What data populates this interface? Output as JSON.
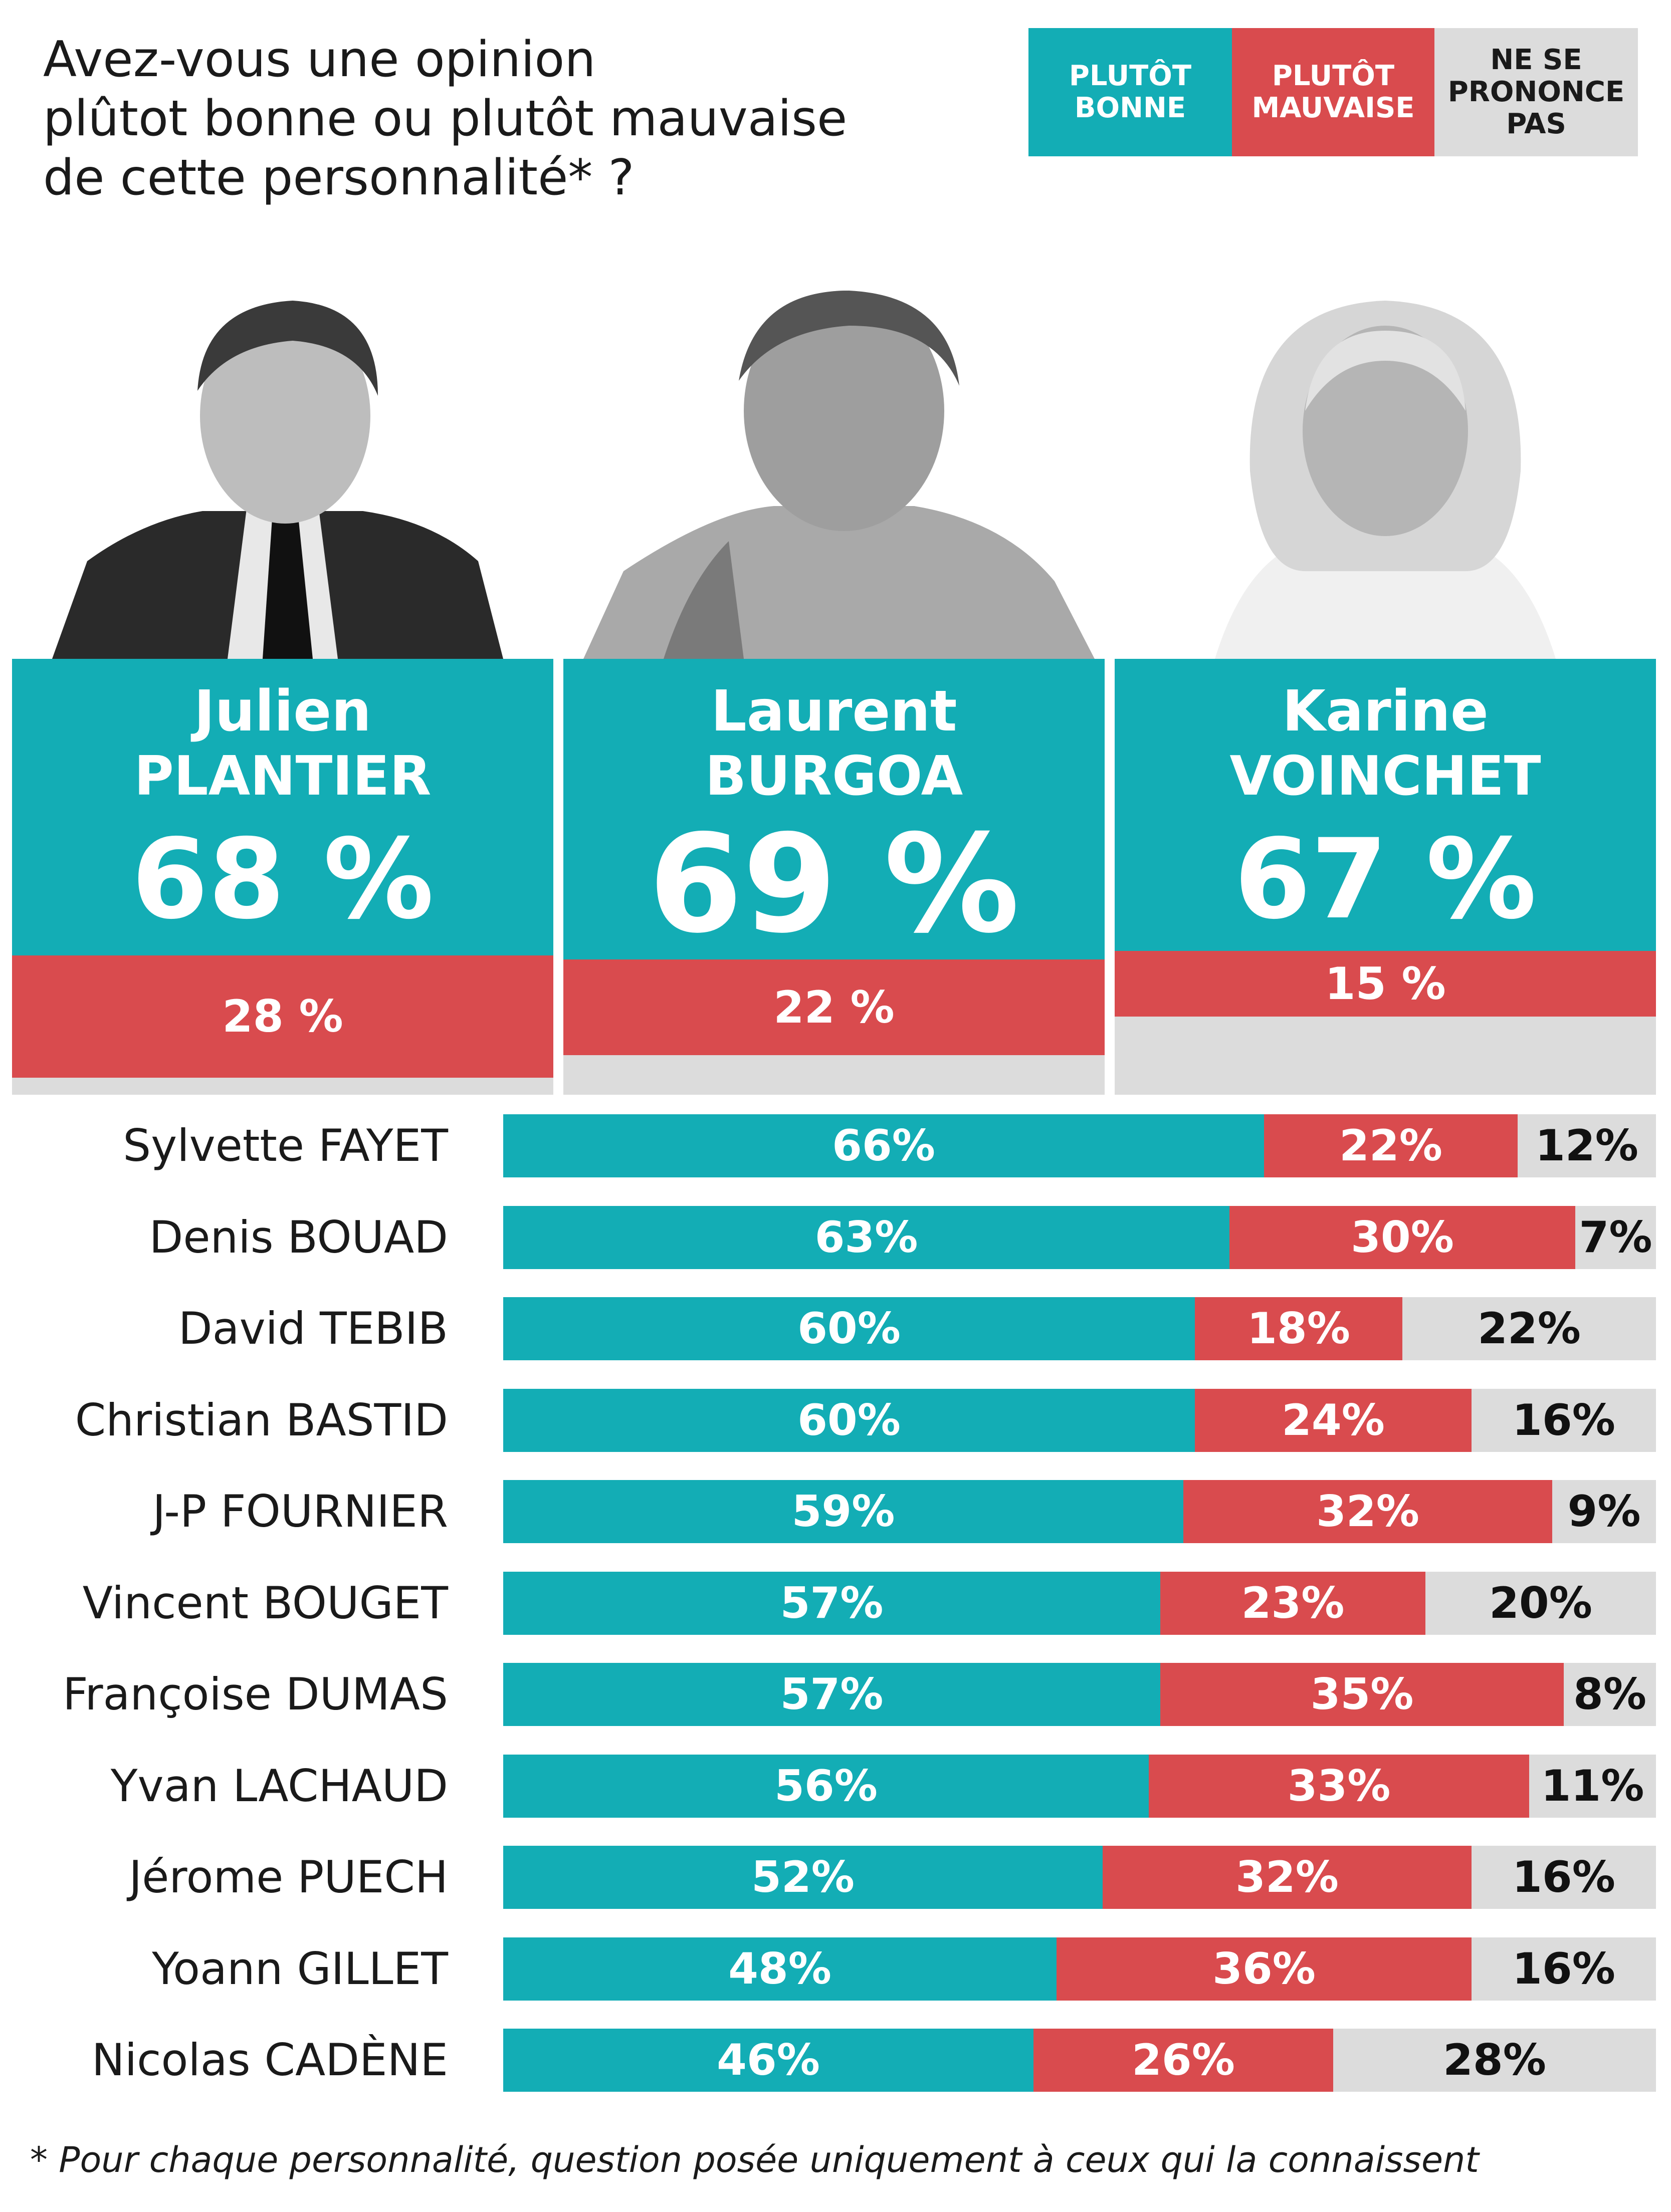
{
  "question": {
    "line1": "Avez-vous une opinion",
    "line2": "plûtot bonne ou plutôt mauvaise",
    "line3": "de cette personnalité* ?"
  },
  "legend": {
    "good": [
      "PLUTÔT",
      "BONNE"
    ],
    "bad": [
      "PLUTÔT",
      "MAUVAISE"
    ],
    "nsp": [
      "NE SE",
      "PRONONCE",
      "PAS"
    ]
  },
  "colors": {
    "good": "#13adb5",
    "bad": "#d94b4e",
    "nsp": "#dcdcdc"
  },
  "featured": [
    {
      "first": "Julien",
      "last": "PLANTIER",
      "good_label": "68 %",
      "bad_label": "28 %",
      "good": 68,
      "bad": 28
    },
    {
      "first": "Laurent",
      "last": "BURGOA",
      "good_label": "69 %",
      "bad_label": "22 %",
      "good": 69,
      "bad": 22
    },
    {
      "first": "Karine",
      "last": "VOINCHET",
      "good_label": "67 %",
      "bad_label": "15 %",
      "good": 67,
      "bad": 15
    }
  ],
  "chart_data": {
    "type": "bar",
    "stacked": true,
    "orientation": "horizontal",
    "categories": [
      "Sylvette FAYET",
      "Denis BOUAD",
      "David TEBIB",
      "Christian BASTID",
      "J-P FOURNIER",
      "Vincent BOUGET",
      "Françoise DUMAS",
      "Yvan LACHAUD",
      "Jérome PUECH",
      "Yoann GILLET",
      "Nicolas CADÈNE"
    ],
    "series": [
      {
        "name": "PLUTÔT BONNE",
        "values": [
          66,
          63,
          60,
          60,
          59,
          57,
          57,
          56,
          52,
          48,
          46
        ]
      },
      {
        "name": "PLUTÔT MAUVAISE",
        "values": [
          22,
          30,
          18,
          24,
          32,
          23,
          35,
          33,
          32,
          36,
          26
        ]
      },
      {
        "name": "NE SE PRONONCE PAS",
        "values": [
          12,
          7,
          22,
          16,
          9,
          20,
          8,
          11,
          16,
          16,
          28
        ]
      }
    ],
    "unit": "%"
  },
  "footnote": "* Pour chaque personnalité, question posée uniquement à ceux qui la connaissent"
}
